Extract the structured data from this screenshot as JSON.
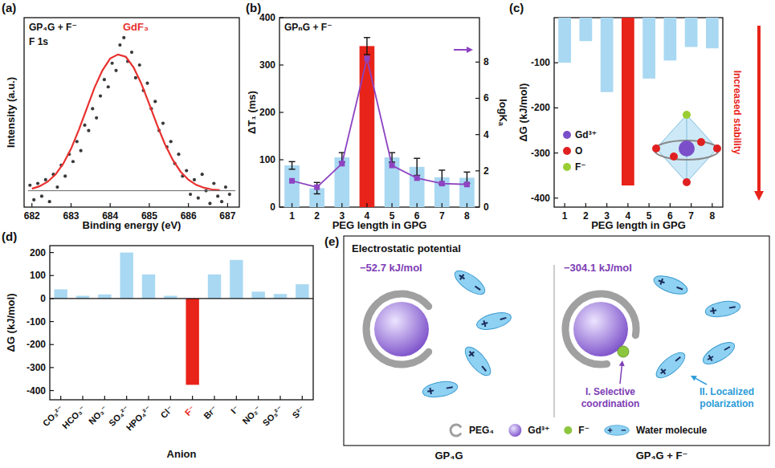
{
  "chart_data": [
    {
      "panel": "(a)",
      "type": "scatter",
      "title": "GP₄G + F⁻",
      "subtitle": "F 1s",
      "xlabel": "Binding energy (eV)",
      "ylabel": "Intensity (a.u.)",
      "xlim": [
        681.8,
        687.3
      ],
      "xticks": [
        682,
        683,
        684,
        685,
        686,
        687
      ],
      "ylim": [
        -9,
        95
      ],
      "tick_labels": "x",
      "series": [
        {
          "type": "scatter",
          "x": [
            681.95,
            682.05,
            682.15,
            682.25,
            682.35,
            682.45,
            682.55,
            682.65,
            682.75,
            682.85,
            682.95,
            683.05,
            683.15,
            683.25,
            683.35,
            683.45,
            683.55,
            683.65,
            683.75,
            683.85,
            683.95,
            684.05,
            684.15,
            684.25,
            684.35,
            684.45,
            684.55,
            684.65,
            684.75,
            684.85,
            684.95,
            685.05,
            685.15,
            685.25,
            685.35,
            685.45,
            685.55,
            685.65,
            685.75,
            685.85,
            685.95,
            686.05,
            686.15,
            686.25,
            686.35,
            686.45,
            686.55,
            686.65,
            686.75,
            686.85,
            686.95,
            687.05
          ],
          "values": [
            3,
            -5,
            4,
            -3,
            6,
            -6,
            9,
            2,
            14,
            8,
            20,
            16,
            27,
            22,
            36,
            33,
            45,
            40,
            52,
            61,
            57,
            70,
            66,
            80,
            84,
            71,
            76,
            62,
            69,
            55,
            59,
            45,
            49,
            33,
            37,
            24,
            27,
            15,
            20,
            8,
            11,
            -2,
            6,
            -4,
            9,
            0,
            -7,
            4,
            -3,
            -6,
            2,
            -2
          ],
          "color": "#3a3a3a",
          "marker": "circle"
        },
        {
          "type": "line",
          "name": "GdF₃",
          "x": [
            682.0,
            682.2,
            682.4,
            682.6,
            682.8,
            683.0,
            683.2,
            683.4,
            683.6,
            683.8,
            684.0,
            684.2,
            684.4,
            684.6,
            684.8,
            685.0,
            685.2,
            685.4,
            685.6,
            685.8,
            686.0,
            686.2,
            686.4,
            686.6,
            686.8
          ],
          "values": [
            1.1,
            2.5,
            4.9,
            8.8,
            14.8,
            23,
            33.5,
            45,
            56.6,
            66,
            72.6,
            74.8,
            73.5,
            67.6,
            58.6,
            47.5,
            36,
            25.5,
            16.9,
            10.4,
            6,
            3.2,
            1.6,
            0.7,
            0.3
          ],
          "color": "#e8312f"
        },
        {
          "type": "line",
          "x": [
            681.9,
            687.2
          ],
          "values": [
            0,
            0
          ],
          "color": "#666666"
        }
      ]
    },
    {
      "panel": "(b)",
      "type": "bar",
      "title": "GPₙG + F⁻",
      "xlabel": "PEG length in GPG",
      "ylabel": "ΔT₁ (ms)",
      "y2label": "logKₐ",
      "categories": [
        "1",
        "2",
        "3",
        "4",
        "5",
        "6",
        "7",
        "8"
      ],
      "ylim": [
        0,
        400
      ],
      "yticks": [
        0,
        100,
        200,
        300,
        400
      ],
      "y2lim": [
        0,
        10.45
      ],
      "y2ticks": [
        0,
        2,
        4,
        6,
        8
      ],
      "series": [
        {
          "type": "bar",
          "values": [
            88,
            40,
            105,
            340,
            105,
            85,
            63,
            62
          ],
          "error": [
            8,
            12,
            10,
            18,
            10,
            18,
            15,
            12
          ],
          "colors": [
            "#a9d8f2",
            "#a9d8f2",
            "#a9d8f2",
            "#e8231a",
            "#a9d8f2",
            "#a9d8f2",
            "#a9d8f2",
            "#a9d8f2"
          ]
        },
        {
          "type": "line",
          "axis": "y2",
          "values": [
            1.45,
            1.1,
            2.4,
            8.2,
            2.3,
            1.6,
            1.3,
            1.25
          ],
          "color": "#8e44c2",
          "marker": "square"
        }
      ]
    },
    {
      "panel": "(c)",
      "type": "bar",
      "xlabel": "PEG length in GPG",
      "ylabel": "ΔG (kJ/mol)",
      "categories": [
        "1",
        "2",
        "3",
        "4",
        "5",
        "6",
        "7",
        "8"
      ],
      "ylim": [
        -420,
        0
      ],
      "yticks": [
        -400,
        -300,
        -200,
        -100
      ],
      "series": [
        {
          "type": "bar",
          "values": [
            -100,
            -52,
            -165,
            -372,
            -135,
            -95,
            -65,
            -68
          ],
          "colors": [
            "#a9d8f2",
            "#a9d8f2",
            "#a9d8f2",
            "#e8231a",
            "#a9d8f2",
            "#a9d8f2",
            "#a9d8f2",
            "#a9d8f2"
          ]
        }
      ],
      "annotations": [
        "Increased stability"
      ],
      "inset_legend": [
        {
          "label": "Gd³⁺",
          "color": "#7b4fc9"
        },
        {
          "label": "O",
          "color": "#e02020"
        },
        {
          "label": "F⁻",
          "color": "#9acd32"
        }
      ]
    },
    {
      "panel": "(d)",
      "type": "bar",
      "xlabel": "Anion",
      "ylabel": "ΔG (kJ/mol)",
      "categories": [
        "CO₃²⁻",
        "HCO₃⁻",
        "NO₃⁻",
        "SO₄²⁻",
        "HPO₄²⁻",
        "Cl⁻",
        "F⁻",
        "Br⁻",
        "I⁻",
        "NO₂⁻",
        "SO₃²⁻",
        "S²⁻"
      ],
      "ylim": [
        -440,
        230
      ],
      "yticks": [
        -400,
        -300,
        -200,
        -100,
        0,
        100,
        200
      ],
      "series": [
        {
          "type": "bar",
          "values": [
            40,
            12,
            18,
            200,
            105,
            12,
            -375,
            105,
            168,
            30,
            20,
            62
          ],
          "colors": [
            "#a9d8f2",
            "#a9d8f2",
            "#a9d8f2",
            "#a9d8f2",
            "#a9d8f2",
            "#a9d8f2",
            "#e8231a",
            "#a9d8f2",
            "#a9d8f2",
            "#a9d8f2",
            "#a9d8f2",
            "#a9d8f2"
          ]
        }
      ]
    }
  ],
  "diagram": {
    "panel": "(e)",
    "title": "Electrostatic potential",
    "states": [
      {
        "label": "GP₄G",
        "potential": "−52.7 kJ/mol"
      },
      {
        "label": "GP₄G + F⁻",
        "potential": "−304.1 kJ/mol",
        "annotations": [
          "I. Selective coordination",
          "II. Localized polarization"
        ]
      }
    ],
    "legend": [
      {
        "label": "PEG₄",
        "color": "#a0a0a0"
      },
      {
        "label": "Gd³⁺",
        "color": "#7b4fc9"
      },
      {
        "label": "F⁻",
        "color": "#8cc63f"
      },
      {
        "label": "Water molecule",
        "color": "#8ed1f2"
      }
    ]
  }
}
